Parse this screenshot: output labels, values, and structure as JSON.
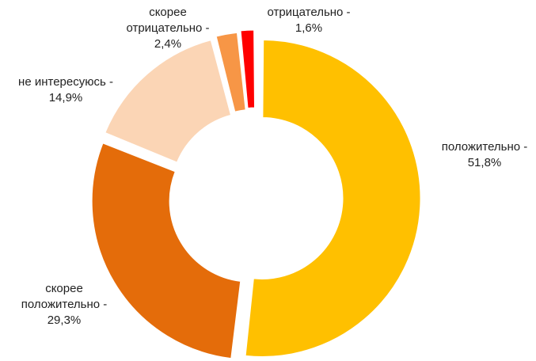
{
  "chart_data": {
    "type": "pie",
    "title": "",
    "slices": [
      {
        "category": "положительно",
        "label_lines": [
          "положительно -",
          "51,8%"
        ],
        "value": 51.8,
        "value_text": "51,8%",
        "color": "#FFC000"
      },
      {
        "category": "скорее положительно",
        "label_lines": [
          "скорее",
          "положительно -",
          "29,3%"
        ],
        "value": 29.3,
        "value_text": "29,3%",
        "color": "#E46C0A"
      },
      {
        "category": "не интересуюсь",
        "label_lines": [
          "не интересуюсь -",
          "14,9%"
        ],
        "value": 14.9,
        "value_text": "14,9%",
        "color": "#FBD5B5"
      },
      {
        "category": "скорее отрицательно",
        "label_lines": [
          "скорее",
          "отрицательно -",
          "2,4%"
        ],
        "value": 2.4,
        "value_text": "2,4%",
        "color": "#F79646"
      },
      {
        "category": "отрицательно",
        "label_lines": [
          "отрицательно -",
          "1,6%"
        ],
        "value": 1.6,
        "value_text": "1,6%",
        "color": "#FF0000"
      }
    ]
  }
}
